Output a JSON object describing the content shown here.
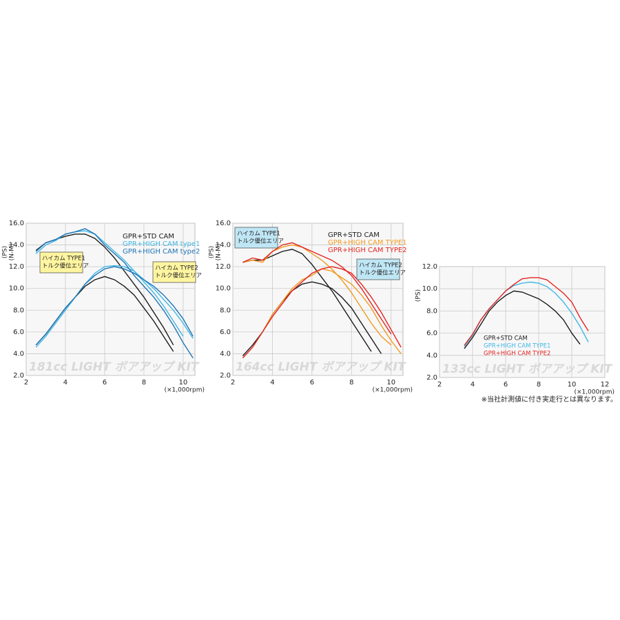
{
  "chart_data": [
    {
      "type": "line",
      "title": "181cc LIGHT ボアアップ KIT",
      "y_label": "(PS)",
      "y2_label": "(N-M)",
      "x_label": "(×1,000rpm)",
      "xlim": [
        2,
        10.6
      ],
      "xticks": [
        2,
        4,
        6,
        8,
        10
      ],
      "ylim": [
        2,
        16
      ],
      "yticks": [
        {
          "value": 2,
          "label": "2.0"
        },
        {
          "value": 4,
          "label": "4.0"
        },
        {
          "value": 6,
          "label": "6.0"
        },
        {
          "value": 8,
          "label": "8.0"
        },
        {
          "value": 10,
          "label": "10.0"
        },
        {
          "value": 12,
          "label": "12.0"
        },
        {
          "value": 14,
          "label": "14.0"
        },
        {
          "value": 16,
          "label": "16.0"
        }
      ],
      "grid": true,
      "x": [
        2.5,
        3,
        3.5,
        4,
        4.5,
        5,
        5.5,
        6,
        6.5,
        7,
        7.5,
        8,
        8.5,
        9,
        9.5,
        10,
        10.5
      ],
      "series": [
        {
          "name": "GPR+STD CAM",
          "color": "#1a1a1a",
          "values": [
            4.8,
            5.8,
            7.0,
            8.2,
            9.2,
            10.2,
            10.8,
            11.1,
            10.8,
            10.2,
            9.4,
            8.2,
            7.0,
            5.6,
            4.2,
            null,
            null
          ],
          "torque": [
            13.5,
            14.2,
            14.5,
            14.8,
            15.0,
            15.0,
            14.6,
            13.8,
            12.8,
            11.6,
            10.4,
            9.2,
            7.8,
            6.4,
            4.8,
            null,
            null
          ]
        },
        {
          "name": "GPR+HIGH CAM type1",
          "color": "#3fb7e6",
          "values": [
            4.6,
            5.6,
            6.8,
            8.0,
            9.2,
            10.4,
            11.4,
            12.0,
            12.1,
            12.0,
            11.6,
            10.8,
            10.0,
            9.0,
            8.0,
            6.8,
            5.4
          ],
          "torque": [
            13.2,
            14.0,
            14.4,
            15.0,
            15.2,
            15.3,
            15.0,
            14.2,
            13.4,
            12.6,
            11.6,
            10.6,
            9.6,
            8.4,
            7.0,
            5.6,
            null
          ]
        },
        {
          "name": "GPR+HIGH CAM type2",
          "color": "#1f74b4",
          "values": [
            4.8,
            5.8,
            7.0,
            8.2,
            9.2,
            10.4,
            11.2,
            11.8,
            12.0,
            11.8,
            11.4,
            10.8,
            10.2,
            9.4,
            8.4,
            7.2,
            5.6
          ],
          "torque": [
            13.4,
            14.2,
            14.5,
            15.0,
            15.2,
            15.5,
            15.0,
            14.0,
            13.2,
            12.4,
            11.2,
            10.2,
            9.2,
            8.0,
            6.6,
            5.0,
            3.6
          ]
        }
      ],
      "annotations": [
        {
          "lines": [
            "ハイカム TYPE1",
            "トルク優位エリア"
          ]
        },
        {
          "lines": [
            "ハイカム TYPE2",
            "トルク優位エリア"
          ]
        }
      ]
    },
    {
      "type": "line",
      "title": "164cc LIGHT ボアアップ KIT",
      "y_label": "(PS)",
      "y2_label": "(N-M)",
      "x_label": "(×1,000rpm)",
      "xlim": [
        2,
        10.6
      ],
      "xticks": [
        2,
        4,
        6,
        8,
        10
      ],
      "ylim": [
        2,
        16
      ],
      "yticks": [
        {
          "value": 2,
          "label": "2.0"
        },
        {
          "value": 4,
          "label": "4.0"
        },
        {
          "value": 6,
          "label": "6.0"
        },
        {
          "value": 8,
          "label": "8.0"
        },
        {
          "value": 10,
          "label": "10.0"
        },
        {
          "value": 12,
          "label": "12.0"
        },
        {
          "value": 14,
          "label": "14.0"
        },
        {
          "value": 16,
          "label": "16.0"
        }
      ],
      "grid": true,
      "x": [
        2.5,
        3,
        3.5,
        4,
        4.5,
        5,
        5.5,
        6,
        6.5,
        7,
        7.5,
        8,
        8.5,
        9,
        9.5,
        10,
        10.5
      ],
      "series": [
        {
          "name": "GPR+STD CAM",
          "color": "#1a1a1a",
          "values": [
            3.8,
            4.8,
            6.0,
            7.6,
            8.8,
            9.8,
            10.4,
            10.6,
            10.4,
            10.0,
            9.2,
            8.2,
            6.8,
            5.4,
            4.0,
            null,
            null
          ],
          "torque": [
            12.4,
            12.6,
            12.6,
            13.0,
            13.4,
            13.6,
            13.2,
            12.2,
            11.0,
            9.8,
            8.4,
            7.0,
            5.6,
            4.2,
            null,
            null,
            null
          ]
        },
        {
          "name": "GPR+HIGH CAM TYPE1",
          "color": "#f29a1f",
          "values": [
            3.6,
            4.6,
            6.0,
            7.6,
            8.8,
            10.0,
            10.8,
            11.2,
            11.8,
            11.6,
            11.0,
            10.4,
            9.4,
            8.2,
            6.6,
            5.2,
            4.0
          ],
          "torque": [
            12.4,
            12.6,
            12.4,
            13.4,
            13.8,
            14.0,
            13.8,
            13.2,
            12.6,
            11.8,
            10.8,
            9.6,
            8.2,
            6.8,
            5.6,
            4.8,
            null
          ]
        },
        {
          "name": "GPR+HIGH CAM TYPE2",
          "color": "#e52421",
          "values": [
            3.6,
            4.6,
            6.0,
            7.4,
            8.6,
            9.8,
            10.6,
            11.4,
            11.8,
            12.0,
            11.8,
            11.4,
            10.4,
            9.2,
            7.8,
            6.2,
            4.6
          ],
          "torque": [
            12.4,
            12.8,
            12.6,
            13.4,
            14.0,
            14.2,
            13.8,
            13.4,
            13.0,
            12.6,
            12.0,
            11.2,
            10.0,
            8.6,
            7.2,
            5.8,
            null
          ]
        }
      ],
      "annotations": [
        {
          "lines": [
            "ハイカム TYPE1",
            "トルク優位エリア"
          ]
        },
        {
          "lines": [
            "ハイカム TYPE2",
            "トルク優位エリア"
          ]
        }
      ]
    },
    {
      "type": "line",
      "title": "133cc LIGHT ボアアップ KIT",
      "y_label": "(PS)",
      "x_label": "(×1,000rpm)",
      "xlim": [
        2,
        12
      ],
      "xticks": [
        2,
        4,
        6,
        8,
        10,
        12
      ],
      "ylim": [
        2,
        12
      ],
      "yticks": [
        {
          "value": 2,
          "label": "2.0"
        },
        {
          "value": 4,
          "label": "4.0"
        },
        {
          "value": 6,
          "label": "6.0"
        },
        {
          "value": 8,
          "label": "8.0"
        },
        {
          "value": 10,
          "label": "10.0"
        },
        {
          "value": 12,
          "label": "12.0"
        }
      ],
      "grid": true,
      "x": [
        3.5,
        4,
        4.5,
        5,
        5.5,
        6,
        6.5,
        7,
        7.5,
        8,
        8.5,
        9,
        9.5,
        10,
        10.5,
        11
      ],
      "series": [
        {
          "name": "GPR+STD CAM",
          "color": "#1a1a1a",
          "values": [
            4.6,
            5.6,
            6.8,
            8.0,
            8.8,
            9.4,
            9.8,
            9.7,
            9.4,
            9.1,
            8.6,
            8.0,
            7.2,
            6.0,
            5.0,
            null
          ]
        },
        {
          "name": "GPR+HIGH CAM TYPE1",
          "color": "#3fb7e6",
          "values": [
            4.8,
            5.8,
            7.2,
            8.2,
            9.0,
            9.8,
            10.3,
            10.5,
            10.6,
            10.5,
            10.2,
            9.6,
            8.8,
            7.8,
            6.6,
            5.2
          ]
        },
        {
          "name": "GPR+HIGH CAM TYPE2",
          "color": "#e52421",
          "values": [
            4.9,
            5.9,
            7.2,
            8.2,
            9.0,
            9.8,
            10.4,
            10.9,
            11.0,
            11.0,
            10.8,
            10.2,
            9.6,
            8.8,
            7.4,
            6.2
          ]
        }
      ]
    }
  ],
  "footnote": "※当社計測値に付き実走行とは異なります。"
}
